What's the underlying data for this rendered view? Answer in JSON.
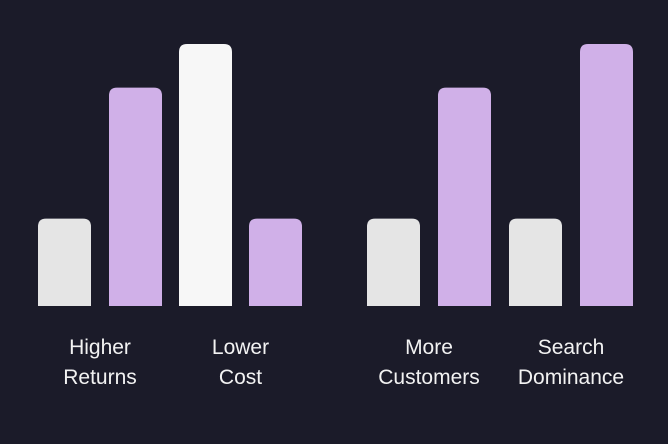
{
  "colors": {
    "background": "#1b1b29",
    "bar_grey": "#e5e5e5",
    "bar_white": "#f7f7f7",
    "bar_purple": "#d0b0e8",
    "label": "#f2f2f2"
  },
  "chart_data": {
    "type": "bar",
    "title": "",
    "xlabel": "",
    "ylabel": "",
    "ylim": [
      0,
      3
    ],
    "grid": false,
    "legend": "none",
    "axes_visible": false,
    "groups": [
      {
        "label_lines": [
          "Higher",
          "Returns"
        ],
        "bars": [
          {
            "value": 1,
            "color": "bar_grey"
          },
          {
            "value": 2.5,
            "color": "bar_purple"
          }
        ]
      },
      {
        "label_lines": [
          "Lower",
          "Cost"
        ],
        "bars": [
          {
            "value": 3,
            "color": "bar_white"
          },
          {
            "value": 1,
            "color": "bar_purple"
          }
        ]
      },
      {
        "label_lines": [
          "More",
          "Customers"
        ],
        "bars": [
          {
            "value": 1,
            "color": "bar_grey"
          },
          {
            "value": 2.5,
            "color": "bar_purple"
          }
        ]
      },
      {
        "label_lines": [
          "Search",
          "Dominance"
        ],
        "bars": [
          {
            "value": 1,
            "color": "bar_grey"
          },
          {
            "value": 3,
            "color": "bar_purple"
          }
        ]
      }
    ]
  }
}
